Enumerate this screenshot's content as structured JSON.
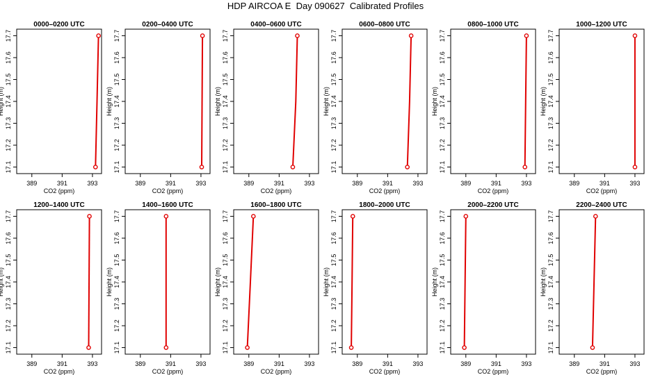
{
  "page": {
    "title": "HDP AIRCOA E  Day 090627  Calibrated Profiles"
  },
  "colors": {
    "profile": "#e00000",
    "axis": "#000000"
  },
  "chart_data": [
    {
      "type": "line",
      "title": "0000–0200 UTC",
      "xlabel": "CO2 (ppm)",
      "ylabel": "Height (m)",
      "xlim": [
        388,
        393.6
      ],
      "ylim": [
        17.07,
        17.73
      ],
      "xticks": [
        389,
        391,
        393
      ],
      "yticks": [
        17.1,
        17.2,
        17.3,
        17.4,
        17.5,
        17.6,
        17.7
      ],
      "series": [
        {
          "x": [
            393.2,
            393.3,
            393.4
          ],
          "y": [
            17.1,
            17.4,
            17.7
          ]
        }
      ],
      "markers": [
        {
          "x": 393.2,
          "y": 17.1
        },
        {
          "x": 393.4,
          "y": 17.7
        }
      ]
    },
    {
      "type": "line",
      "title": "0200–0400 UTC",
      "xlabel": "CO2 (ppm)",
      "ylabel": "Height (m)",
      "xlim": [
        388,
        393.6
      ],
      "ylim": [
        17.07,
        17.73
      ],
      "xticks": [
        389,
        391,
        393
      ],
      "yticks": [
        17.1,
        17.2,
        17.3,
        17.4,
        17.5,
        17.6,
        17.7
      ],
      "series": [
        {
          "x": [
            393.05,
            393.1
          ],
          "y": [
            17.1,
            17.7
          ]
        }
      ],
      "markers": [
        {
          "x": 393.05,
          "y": 17.1
        },
        {
          "x": 393.1,
          "y": 17.7
        }
      ]
    },
    {
      "type": "line",
      "title": "0400–0600 UTC",
      "xlabel": "CO2 (ppm)",
      "ylabel": "Height (m)",
      "xlim": [
        388,
        393.6
      ],
      "ylim": [
        17.07,
        17.73
      ],
      "xticks": [
        389,
        391,
        393
      ],
      "yticks": [
        17.1,
        17.2,
        17.3,
        17.4,
        17.5,
        17.6,
        17.7
      ],
      "series": [
        {
          "x": [
            391.9,
            392.1,
            392.2
          ],
          "y": [
            17.1,
            17.4,
            17.7
          ]
        }
      ],
      "markers": [
        {
          "x": 391.9,
          "y": 17.1
        },
        {
          "x": 392.2,
          "y": 17.7
        }
      ]
    },
    {
      "type": "line",
      "title": "0600–0800 UTC",
      "xlabel": "CO2 (ppm)",
      "ylabel": "Height (m)",
      "xlim": [
        388,
        393.6
      ],
      "ylim": [
        17.07,
        17.73
      ],
      "xticks": [
        389,
        391,
        393
      ],
      "yticks": [
        17.1,
        17.2,
        17.3,
        17.4,
        17.5,
        17.6,
        17.7
      ],
      "series": [
        {
          "x": [
            392.3,
            392.45,
            392.55
          ],
          "y": [
            17.1,
            17.4,
            17.7
          ]
        }
      ],
      "markers": [
        {
          "x": 392.3,
          "y": 17.1
        },
        {
          "x": 392.55,
          "y": 17.7
        }
      ]
    },
    {
      "type": "line",
      "title": "0800–1000 UTC",
      "xlabel": "CO2 (ppm)",
      "ylabel": "Height (m)",
      "xlim": [
        388,
        393.6
      ],
      "ylim": [
        17.07,
        17.73
      ],
      "xticks": [
        389,
        391,
        393
      ],
      "yticks": [
        17.1,
        17.2,
        17.3,
        17.4,
        17.5,
        17.6,
        17.7
      ],
      "series": [
        {
          "x": [
            392.9,
            392.95,
            393.0
          ],
          "y": [
            17.1,
            17.4,
            17.7
          ]
        }
      ],
      "markers": [
        {
          "x": 392.9,
          "y": 17.1
        },
        {
          "x": 393.0,
          "y": 17.7
        }
      ]
    },
    {
      "type": "line",
      "title": "1000–1200 UTC",
      "xlabel": "CO2 (ppm)",
      "ylabel": "Height (m)",
      "xlim": [
        388,
        393.6
      ],
      "ylim": [
        17.07,
        17.73
      ],
      "xticks": [
        389,
        391,
        393
      ],
      "yticks": [
        17.1,
        17.2,
        17.3,
        17.4,
        17.5,
        17.6,
        17.7
      ],
      "series": [
        {
          "x": [
            393.0,
            393.0
          ],
          "y": [
            17.1,
            17.7
          ]
        }
      ],
      "markers": [
        {
          "x": 393.0,
          "y": 17.1
        },
        {
          "x": 393.0,
          "y": 17.7
        }
      ]
    },
    {
      "type": "line",
      "title": "1200–1400 UTC",
      "xlabel": "CO2 (ppm)",
      "ylabel": "Height (m)",
      "xlim": [
        388,
        393.6
      ],
      "ylim": [
        17.07,
        17.73
      ],
      "xticks": [
        389,
        391,
        393
      ],
      "yticks": [
        17.1,
        17.2,
        17.3,
        17.4,
        17.5,
        17.6,
        17.7
      ],
      "series": [
        {
          "x": [
            392.75,
            392.8
          ],
          "y": [
            17.1,
            17.7
          ]
        }
      ],
      "markers": [
        {
          "x": 392.75,
          "y": 17.1
        },
        {
          "x": 392.8,
          "y": 17.7
        }
      ]
    },
    {
      "type": "line",
      "title": "1400–1600 UTC",
      "xlabel": "CO2 (ppm)",
      "ylabel": "Height (m)",
      "xlim": [
        388,
        393.6
      ],
      "ylim": [
        17.07,
        17.73
      ],
      "xticks": [
        389,
        391,
        393
      ],
      "yticks": [
        17.1,
        17.2,
        17.3,
        17.4,
        17.5,
        17.6,
        17.7
      ],
      "series": [
        {
          "x": [
            390.7,
            390.7
          ],
          "y": [
            17.1,
            17.7
          ]
        }
      ],
      "markers": [
        {
          "x": 390.7,
          "y": 17.1
        },
        {
          "x": 390.7,
          "y": 17.7
        }
      ]
    },
    {
      "type": "line",
      "title": "1600–1800 UTC",
      "xlabel": "CO2 (ppm)",
      "ylabel": "Height (m)",
      "xlim": [
        388,
        393.6
      ],
      "ylim": [
        17.07,
        17.73
      ],
      "xticks": [
        389,
        391,
        393
      ],
      "yticks": [
        17.1,
        17.2,
        17.3,
        17.4,
        17.5,
        17.6,
        17.7
      ],
      "series": [
        {
          "x": [
            388.9,
            389.1,
            389.3
          ],
          "y": [
            17.1,
            17.4,
            17.7
          ]
        }
      ],
      "markers": [
        {
          "x": 388.9,
          "y": 17.1
        },
        {
          "x": 389.3,
          "y": 17.7
        }
      ]
    },
    {
      "type": "line",
      "title": "1800–2000 UTC",
      "xlabel": "CO2 (ppm)",
      "ylabel": "Height (m)",
      "xlim": [
        388,
        393.6
      ],
      "ylim": [
        17.07,
        17.73
      ],
      "xticks": [
        389,
        391,
        393
      ],
      "yticks": [
        17.1,
        17.2,
        17.3,
        17.4,
        17.5,
        17.6,
        17.7
      ],
      "series": [
        {
          "x": [
            388.6,
            388.65,
            388.7
          ],
          "y": [
            17.1,
            17.4,
            17.7
          ]
        }
      ],
      "markers": [
        {
          "x": 388.6,
          "y": 17.1
        },
        {
          "x": 388.7,
          "y": 17.7
        }
      ]
    },
    {
      "type": "line",
      "title": "2000–2200 UTC",
      "xlabel": "CO2 (ppm)",
      "ylabel": "Height (m)",
      "xlim": [
        388,
        393.6
      ],
      "ylim": [
        17.07,
        17.73
      ],
      "xticks": [
        389,
        391,
        393
      ],
      "yticks": [
        17.1,
        17.2,
        17.3,
        17.4,
        17.5,
        17.6,
        17.7
      ],
      "series": [
        {
          "x": [
            388.9,
            388.95,
            389.0
          ],
          "y": [
            17.1,
            17.4,
            17.7
          ]
        }
      ],
      "markers": [
        {
          "x": 388.9,
          "y": 17.1
        },
        {
          "x": 389.0,
          "y": 17.7
        }
      ]
    },
    {
      "type": "line",
      "title": "2200–2400 UTC",
      "xlabel": "CO2 (ppm)",
      "ylabel": "Height (m)",
      "xlim": [
        388,
        393.6
      ],
      "ylim": [
        17.07,
        17.73
      ],
      "xticks": [
        389,
        391,
        393
      ],
      "yticks": [
        17.1,
        17.2,
        17.3,
        17.4,
        17.5,
        17.6,
        17.7
      ],
      "series": [
        {
          "x": [
            390.2,
            390.3,
            390.4
          ],
          "y": [
            17.1,
            17.4,
            17.7
          ]
        }
      ],
      "markers": [
        {
          "x": 390.2,
          "y": 17.1
        },
        {
          "x": 390.4,
          "y": 17.7
        }
      ]
    }
  ]
}
